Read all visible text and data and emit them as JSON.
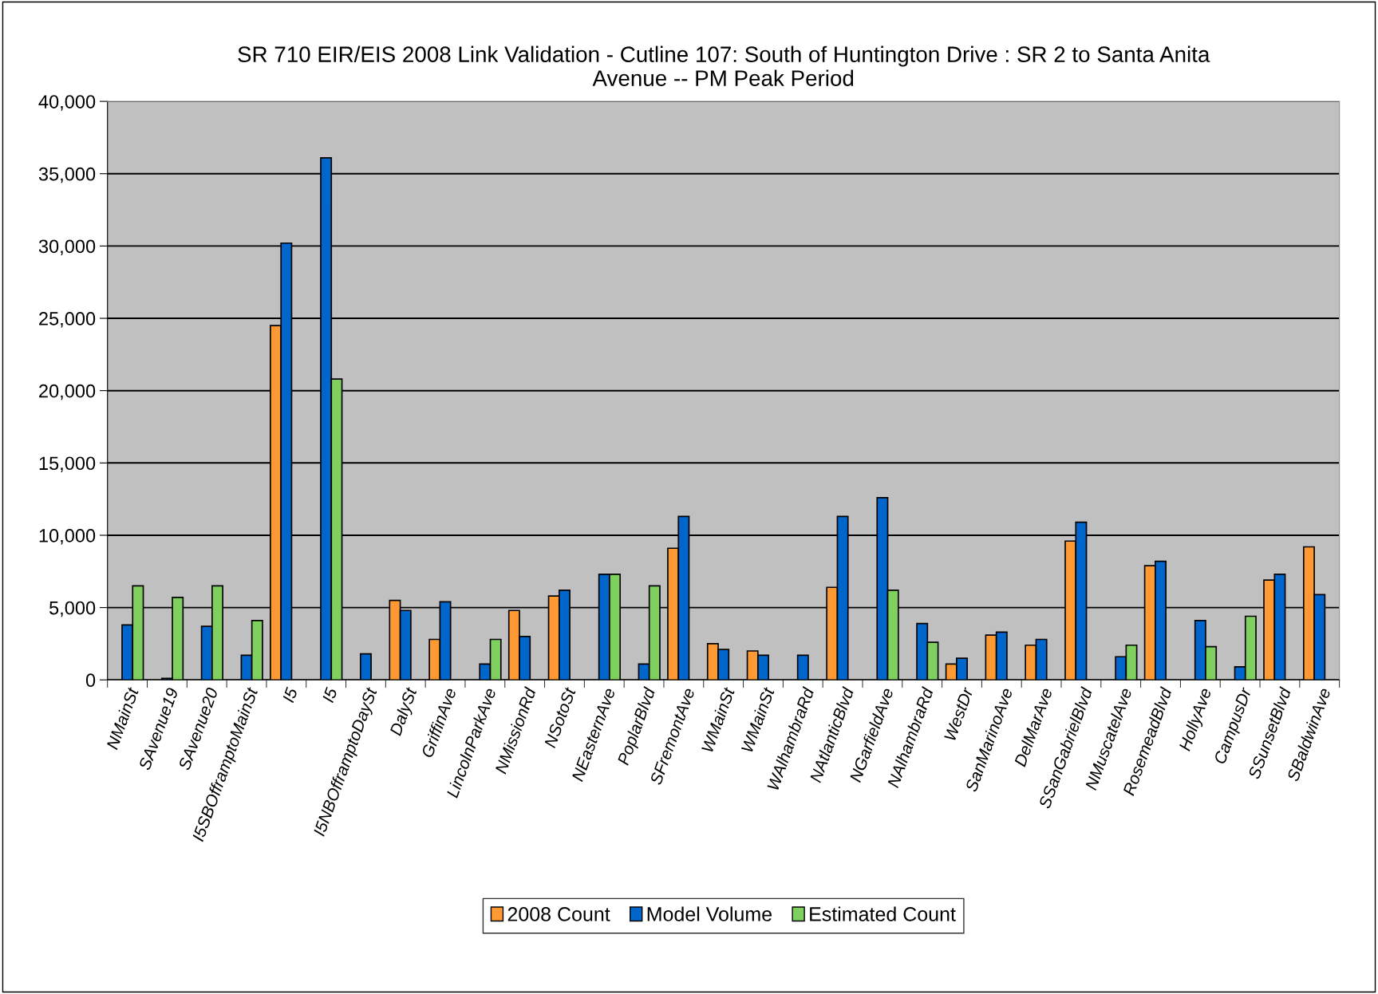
{
  "chart_data": {
    "type": "bar",
    "title": "SR 710 EIR/EIS 2008 Link Validation - Cutline 107: South of Huntington Drive : SR 2 to Santa Anita\nAvenue -- PM Peak Period",
    "categories": [
      "NMainSt",
      "SAvenue19",
      "SAvenue20",
      "I5SBOfframptoMainSt",
      "I5",
      "I5",
      "I5NBOfframptoDaySt",
      "DalySt",
      "GriffinAve",
      "LincolnParkAve",
      "NMissionRd",
      "NSotoSt",
      "NEasternAve",
      "PoplarBlvd",
      "SFremontAve",
      "WMainSt",
      "WMainSt",
      "WAlhambraRd",
      "NAtlanticBlvd",
      "NGarfieldAve",
      "NAlhambraRd",
      "WestDr",
      "SanMarinoAve",
      "DelMarAve",
      "SSanGabrielBlvd",
      "NMuscatelAve",
      "RosemeadBlvd",
      "HollyAve",
      "CampusDr",
      "SSunsetBlvd",
      "SBaldwinAve"
    ],
    "series": [
      {
        "name": "2008 Count",
        "color": "#ff9933",
        "values": [
          null,
          null,
          null,
          null,
          24500,
          null,
          null,
          5500,
          2800,
          null,
          4800,
          5800,
          null,
          null,
          9100,
          2500,
          2000,
          null,
          6400,
          null,
          null,
          1100,
          3100,
          2400,
          9600,
          null,
          7900,
          null,
          null,
          6900,
          9200
        ]
      },
      {
        "name": "Model Volume",
        "color": "#0066cc",
        "values": [
          3800,
          100,
          3700,
          1700,
          30200,
          36100,
          1800,
          4800,
          5400,
          1100,
          3000,
          6200,
          7300,
          1100,
          11300,
          2100,
          1700,
          1700,
          11300,
          12600,
          3900,
          1500,
          3300,
          2800,
          10900,
          1600,
          8200,
          4100,
          900,
          7300,
          5900
        ]
      },
      {
        "name": "Estimated Count",
        "color": "#80d060",
        "values": [
          6500,
          5700,
          6500,
          4100,
          null,
          20800,
          null,
          null,
          null,
          2800,
          null,
          null,
          7300,
          6500,
          null,
          null,
          null,
          null,
          null,
          6200,
          2600,
          null,
          null,
          null,
          null,
          2400,
          null,
          2300,
          4400,
          null,
          null
        ]
      }
    ],
    "ylim": [
      0,
      40000
    ],
    "yticks": [
      {
        "value": 0,
        "label": "0"
      },
      {
        "value": 5000,
        "label": "5,000"
      },
      {
        "value": 10000,
        "label": "10,000"
      },
      {
        "value": 15000,
        "label": "15,000"
      },
      {
        "value": 20000,
        "label": "20,000"
      },
      {
        "value": 25000,
        "label": "25,000"
      },
      {
        "value": 30000,
        "label": "30,000"
      },
      {
        "value": 35000,
        "label": "35,000"
      },
      {
        "value": 40000,
        "label": "40,000"
      }
    ],
    "grid": "y",
    "legend": "bottom"
  }
}
